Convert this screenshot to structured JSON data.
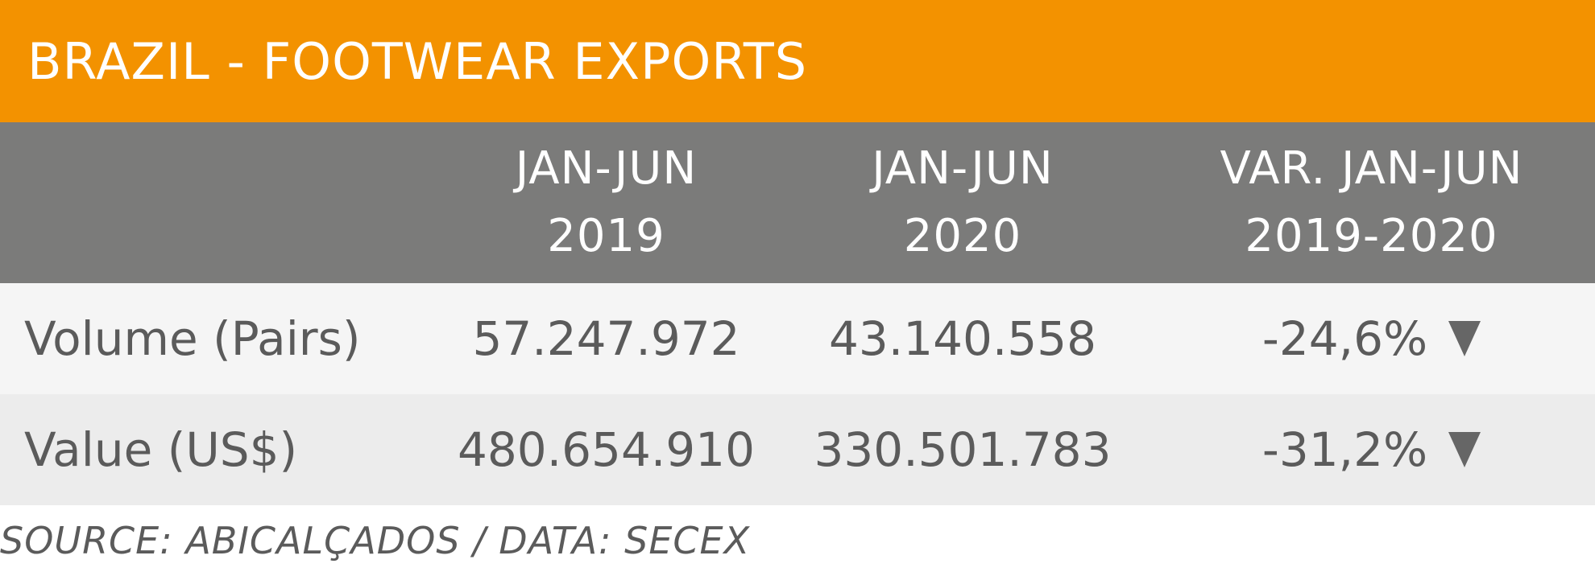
{
  "title": "BRAZIL - FOOTWEAR EXPORTS",
  "colors": {
    "title_bg": "#f39200",
    "header_bg": "#7b7b7a",
    "row_odd_bg": "#f5f5f5",
    "row_even_bg": "#ececec",
    "text": "#5b5b5b",
    "arrow": "#666666"
  },
  "chart_data": {
    "type": "table",
    "title": "BRAZIL - FOOTWEAR EXPORTS",
    "columns": [
      {
        "line1": "",
        "line2": ""
      },
      {
        "line1": "JAN-JUN",
        "line2": "2019"
      },
      {
        "line1": "JAN-JUN",
        "line2": "2020"
      },
      {
        "line1": "VAR. JAN-JUN",
        "line2": "2019-2020"
      }
    ],
    "rows": [
      {
        "label": "Volume (Pairs)",
        "jan_jun_2019": "57.247.972",
        "jan_jun_2020": "43.140.558",
        "variation": "-24,6%",
        "trend": "down",
        "trend_icon": "down-triangle-icon"
      },
      {
        "label": "Value (US$)",
        "jan_jun_2019": "480.654.910",
        "jan_jun_2020": "330.501.783",
        "variation": "-31,2%",
        "trend": "down",
        "trend_icon": "down-triangle-icon"
      }
    ],
    "source": "SOURCE: ABICALÇADOS / DATA: SECEX"
  }
}
